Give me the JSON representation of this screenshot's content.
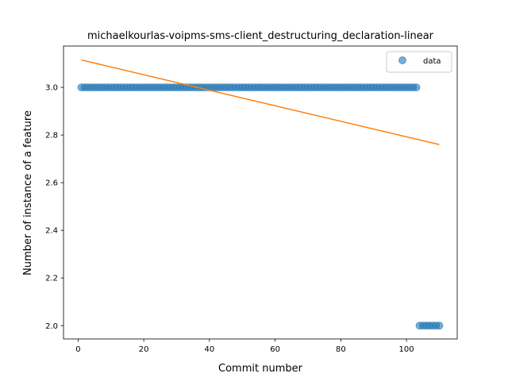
{
  "chart_data": {
    "type": "scatter",
    "title": "michaelkourlas-voipms-sms-client_destructuring_declaration-linear",
    "xlabel": "Commit number",
    "ylabel": "Number of instance of a feature",
    "xlim": [
      -4.45,
      115.45
    ],
    "ylim": [
      1.9442,
      3.1735
    ],
    "xticks": [
      0,
      20,
      40,
      60,
      80,
      100
    ],
    "yticks": [
      2.0,
      2.2,
      2.4,
      2.6,
      2.8,
      3.0
    ],
    "ytick_labels": [
      "2.0",
      "2.2",
      "2.4",
      "2.6",
      "2.8",
      "3.0"
    ],
    "grid": false,
    "legend": {
      "position": "top-right",
      "entries": [
        "data"
      ]
    },
    "series": [
      {
        "name": "data",
        "kind": "scatter",
        "color": "#1f77b4",
        "segments": [
          {
            "x_start": 1,
            "x_end": 103,
            "y": 3
          },
          {
            "x_start": 104,
            "x_end": 110,
            "y": 2
          }
        ]
      },
      {
        "kind": "line",
        "color": "#ff7f0e",
        "x": [
          1,
          110
        ],
        "y": [
          3.115,
          2.76
        ]
      }
    ]
  }
}
